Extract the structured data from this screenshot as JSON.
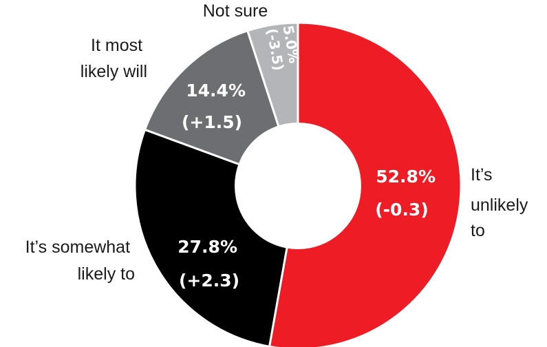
{
  "chart_data": {
    "type": "pie",
    "donut": true,
    "title": "",
    "slices": [
      {
        "label_lines": [
          "It’s",
          "unlikely",
          "to"
        ],
        "value": 52.8,
        "change": "(-0.3)",
        "value_text": "52.8%",
        "color": "#ee1c25"
      },
      {
        "label_lines": [
          "It’s somewhat",
          "likely to"
        ],
        "value": 27.8,
        "change": "(+2.3)",
        "value_text": "27.8%",
        "color": "#000000"
      },
      {
        "label_lines": [
          "It most",
          "likely will"
        ],
        "value": 14.4,
        "change": "(+1.5)",
        "value_text": "14.4%",
        "color": "#6d6e71"
      },
      {
        "label_lines": [
          "Not sure"
        ],
        "value": 5.0,
        "change": "(-3.5)",
        "value_text": "5.0%",
        "color": "#b3b5b8"
      }
    ],
    "start_angle_deg": 0,
    "direction": "clockwise",
    "legend": "none"
  }
}
